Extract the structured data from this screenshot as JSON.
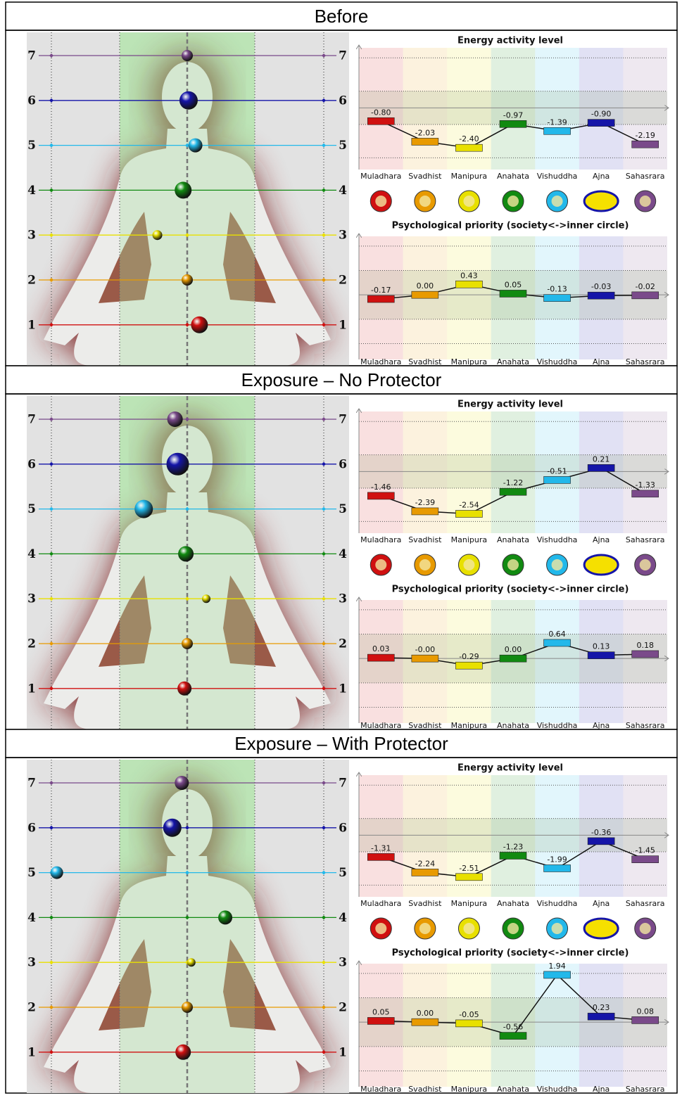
{
  "sections": [
    {
      "title": "Before",
      "body": {
        "levels": [
          1,
          2,
          3,
          4,
          5,
          6,
          7
        ],
        "deviation": [
          0.09,
          0,
          -0.22,
          -0.03,
          0.06,
          0.01,
          0
        ],
        "size": [
          12,
          8,
          7,
          12,
          10,
          13,
          8
        ]
      },
      "chart_data": [
        {
          "type": "bar",
          "title": "Energy activity level",
          "categories": [
            "Muladhara",
            "Svadhist",
            "Manipura",
            "Anahata",
            "Vishuddha",
            "Ajna",
            "Sahasrara"
          ],
          "colors": [
            "#d01010",
            "#e89a00",
            "#e8e000",
            "#118a11",
            "#22b8ea",
            "#1515a8",
            "#7a4a8a"
          ],
          "values": [
            -0.8,
            -2.03,
            -2.4,
            -0.97,
            -1.39,
            -0.9,
            -2.19
          ],
          "value_labels": [
            "-0.80",
            "-2.03",
            "-2.40",
            "-0.97",
            "-1.39",
            "-0.90",
            "-2.19"
          ],
          "ylim": [
            -3.7,
            3.6
          ],
          "gridlines": [
            -3,
            -1,
            1,
            3
          ]
        },
        {
          "type": "bar",
          "title": "Psychological priority (society<->inner circle)",
          "categories": [
            "Muladhara",
            "Svadhist",
            "Manipura",
            "Anahata",
            "Vishuddha",
            "Ajna",
            "Sahasrara"
          ],
          "colors": [
            "#d01010",
            "#e89a00",
            "#e8e000",
            "#118a11",
            "#22b8ea",
            "#1515a8",
            "#7a4a8a"
          ],
          "values": [
            -0.17,
            0,
            0.43,
            0.05,
            -0.13,
            -0.03,
            -0.02
          ],
          "value_labels": [
            "-0.17",
            "0.00",
            "0.43",
            "0.05",
            "-0.13",
            "-0.03",
            "-0.02"
          ],
          "ylim": [
            -2.65,
            2.4
          ],
          "gridlines": [
            -2,
            -1,
            1,
            2
          ]
        }
      ]
    },
    {
      "title": "Exposure – No Protector",
      "body": {
        "levels": [
          1,
          2,
          3,
          4,
          5,
          6,
          7
        ],
        "deviation": [
          -0.02,
          0,
          0.14,
          -0.01,
          -0.32,
          -0.07,
          -0.09
        ],
        "size": [
          10,
          8,
          6,
          11,
          13,
          16,
          11
        ]
      },
      "chart_data": [
        {
          "type": "bar",
          "title": "Energy activity level",
          "categories": [
            "Muladhara",
            "Svadhist",
            "Manipura",
            "Anahata",
            "Vishuddha",
            "Ajna",
            "Sahasrara"
          ],
          "colors": [
            "#d01010",
            "#e89a00",
            "#e8e000",
            "#118a11",
            "#22b8ea",
            "#1515a8",
            "#7a4a8a"
          ],
          "values": [
            -1.46,
            -2.39,
            -2.54,
            -1.22,
            -0.51,
            0.21,
            -1.33
          ],
          "value_labels": [
            "-1.46",
            "-2.39",
            "-2.54",
            "-1.22",
            "-0.51",
            "0.21",
            "-1.33"
          ],
          "ylim": [
            -3.7,
            3.6
          ],
          "gridlines": [
            -3,
            -1,
            1,
            3
          ]
        },
        {
          "type": "bar",
          "title": "Psychological priority (society<->inner circle)",
          "categories": [
            "Muladhara",
            "Svadhist",
            "Manipura",
            "Anahata",
            "Vishuddha",
            "Ajna",
            "Sahasrara"
          ],
          "colors": [
            "#d01010",
            "#e89a00",
            "#e8e000",
            "#118a11",
            "#22b8ea",
            "#1515a8",
            "#7a4a8a"
          ],
          "values": [
            0.03,
            0,
            -0.29,
            0,
            0.64,
            0.13,
            0.18
          ],
          "value_labels": [
            "0.03",
            "-0.00",
            "-0.29",
            "0.00",
            "0.64",
            "0.13",
            "0.18"
          ],
          "ylim": [
            -2.65,
            2.4
          ],
          "gridlines": [
            -2,
            -1,
            1,
            2
          ]
        }
      ]
    },
    {
      "title": "Exposure – With Protector",
      "body": {
        "levels": [
          1,
          2,
          3,
          4,
          5,
          6,
          7
        ],
        "deviation": [
          -0.03,
          0,
          0.03,
          0.28,
          -0.96,
          -0.11,
          -0.04
        ],
        "size": [
          11,
          8,
          6,
          10,
          9,
          13,
          10
        ]
      },
      "chart_data": [
        {
          "type": "bar",
          "title": "Energy activity level",
          "categories": [
            "Muladhara",
            "Svadhist",
            "Manipura",
            "Anahata",
            "Vishuddha",
            "Ajna",
            "Sahasrara"
          ],
          "colors": [
            "#d01010",
            "#e89a00",
            "#e8e000",
            "#118a11",
            "#22b8ea",
            "#1515a8",
            "#7a4a8a"
          ],
          "values": [
            -1.31,
            -2.24,
            -2.51,
            -1.23,
            -1.99,
            -0.36,
            -1.45
          ],
          "value_labels": [
            "-1.31",
            "-2.24",
            "-2.51",
            "-1.23",
            "-1.99",
            "-0.36",
            "-1.45"
          ],
          "ylim": [
            -3.7,
            3.6
          ],
          "gridlines": [
            -3,
            -1,
            1,
            3
          ]
        },
        {
          "type": "bar",
          "title": "Psychological priority (society<->inner circle)",
          "categories": [
            "Muladhara",
            "Svadhist",
            "Manipura",
            "Anahata",
            "Vishuddha",
            "Ajna",
            "Sahasrara"
          ],
          "colors": [
            "#d01010",
            "#e89a00",
            "#e8e000",
            "#118a11",
            "#22b8ea",
            "#1515a8",
            "#7a4a8a"
          ],
          "values": [
            0.05,
            0,
            -0.05,
            -0.56,
            1.94,
            0.23,
            0.08
          ],
          "value_labels": [
            "0.05",
            "0.00",
            "-0.05",
            "-0.56",
            "1.94",
            "0.23",
            "0.08"
          ],
          "ylim": [
            -2.65,
            2.4
          ],
          "gridlines": [
            -2,
            -1,
            1,
            2
          ]
        }
      ]
    }
  ]
}
